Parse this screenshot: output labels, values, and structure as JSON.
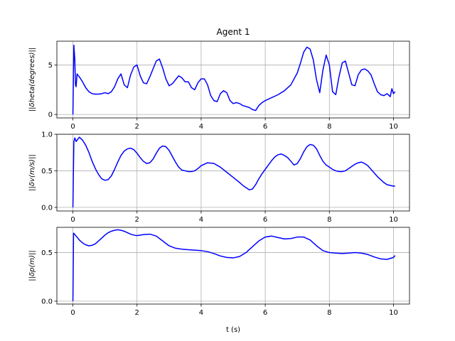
{
  "figure": {
    "title": "Agent 1",
    "xlabel": "t (s)"
  },
  "chart_data": [
    {
      "type": "line",
      "title": "Agent 1",
      "xlabel": "",
      "ylabel": "||δheta(degrees)||",
      "xlim": [
        -0.5,
        10.5
      ],
      "ylim": [
        -0.35,
        7.4
      ],
      "xticks": [
        0,
        2,
        4,
        6,
        8,
        10
      ],
      "yticks": [
        0,
        5
      ],
      "grid": true,
      "color": "#0000ff",
      "series": [
        {
          "x": [
            0,
            0.03,
            0.06,
            0.08,
            0.1,
            0.13,
            0.17,
            0.2,
            0.3,
            0.4,
            0.5,
            0.6,
            0.7,
            0.8,
            0.9,
            1.0,
            1.1,
            1.2,
            1.3,
            1.4,
            1.5,
            1.6,
            1.7,
            1.8,
            1.9,
            2.0,
            2.1,
            2.2,
            2.3,
            2.4,
            2.5,
            2.6,
            2.7,
            2.8,
            2.9,
            3.0,
            3.1,
            3.2,
            3.3,
            3.4,
            3.5,
            3.6,
            3.7,
            3.8,
            3.9,
            4.0,
            4.1,
            4.2,
            4.3,
            4.4,
            4.5,
            4.6,
            4.7,
            4.8,
            4.9,
            5.0,
            5.1,
            5.2,
            5.3,
            5.4,
            5.5,
            5.6,
            5.7,
            5.8,
            5.9,
            6.0,
            6.2,
            6.4,
            6.6,
            6.8,
            7.0,
            7.1,
            7.2,
            7.3,
            7.4,
            7.5,
            7.6,
            7.7,
            7.8,
            7.9,
            8.0,
            8.1,
            8.2,
            8.3,
            8.4,
            8.5,
            8.6,
            8.7,
            8.8,
            8.9,
            9.0,
            9.1,
            9.2,
            9.3,
            9.4,
            9.5,
            9.6,
            9.7,
            9.8,
            9.9,
            9.95,
            10.0,
            10.05
          ],
          "y": [
            0,
            7.0,
            5.5,
            3.0,
            2.8,
            4.1,
            3.9,
            3.8,
            3.3,
            2.7,
            2.3,
            2.1,
            2.05,
            2.05,
            2.1,
            2.2,
            2.1,
            2.3,
            2.8,
            3.6,
            4.1,
            3.0,
            2.7,
            4.0,
            4.8,
            5.0,
            3.9,
            3.2,
            3.1,
            3.8,
            4.6,
            5.4,
            5.6,
            4.7,
            3.6,
            2.9,
            3.1,
            3.5,
            3.9,
            3.7,
            3.3,
            3.3,
            2.7,
            2.5,
            3.2,
            3.6,
            3.6,
            3.0,
            1.9,
            1.4,
            1.3,
            2.1,
            2.4,
            2.2,
            1.4,
            1.1,
            1.2,
            1.1,
            0.9,
            0.8,
            0.7,
            0.5,
            0.4,
            0.9,
            1.2,
            1.4,
            1.7,
            2.0,
            2.4,
            3.0,
            4.2,
            5.2,
            6.3,
            6.8,
            6.6,
            5.5,
            3.5,
            2.2,
            4.5,
            6.0,
            5.0,
            2.3,
            2.0,
            3.8,
            5.2,
            5.4,
            4.2,
            3.0,
            2.9,
            4.0,
            4.5,
            4.6,
            4.4,
            4.0,
            3.1,
            2.3,
            2.0,
            1.9,
            2.1,
            1.8,
            2.6,
            2.1,
            2.3
          ]
        }
      ]
    },
    {
      "type": "line",
      "xlabel": "",
      "ylabel": "||δv(m/s)||",
      "xlim": [
        -0.5,
        10.5
      ],
      "ylim": [
        -0.05,
        1.0
      ],
      "xticks": [
        0,
        2,
        4,
        6,
        8,
        10
      ],
      "yticks": [
        0.0,
        0.5,
        1.0
      ],
      "ytick_labels": [
        "0.0",
        "0.5",
        "1.0"
      ],
      "grid": true,
      "color": "#0000ff",
      "series": [
        {
          "x": [
            0,
            0.03,
            0.06,
            0.1,
            0.15,
            0.2,
            0.3,
            0.4,
            0.5,
            0.6,
            0.7,
            0.8,
            0.9,
            1.0,
            1.1,
            1.2,
            1.3,
            1.4,
            1.5,
            1.6,
            1.7,
            1.8,
            1.9,
            2.0,
            2.1,
            2.2,
            2.3,
            2.4,
            2.5,
            2.6,
            2.7,
            2.8,
            2.9,
            3.0,
            3.1,
            3.2,
            3.3,
            3.4,
            3.5,
            3.6,
            3.7,
            3.8,
            3.9,
            4.0,
            4.2,
            4.4,
            4.6,
            4.8,
            5.0,
            5.2,
            5.3,
            5.4,
            5.5,
            5.6,
            5.7,
            5.8,
            5.9,
            6.0,
            6.1,
            6.2,
            6.3,
            6.4,
            6.5,
            6.6,
            6.7,
            6.8,
            6.9,
            7.0,
            7.1,
            7.2,
            7.3,
            7.4,
            7.5,
            7.6,
            7.7,
            7.8,
            7.9,
            8.0,
            8.1,
            8.2,
            8.3,
            8.4,
            8.5,
            8.6,
            8.7,
            8.8,
            8.9,
            9.0,
            9.1,
            9.2,
            9.3,
            9.4,
            9.5,
            9.6,
            9.7,
            9.8,
            9.9,
            10.0,
            10.05
          ],
          "y": [
            0,
            0.9,
            0.95,
            0.9,
            0.93,
            0.96,
            0.92,
            0.85,
            0.75,
            0.63,
            0.53,
            0.45,
            0.39,
            0.37,
            0.38,
            0.43,
            0.52,
            0.62,
            0.71,
            0.77,
            0.8,
            0.81,
            0.79,
            0.74,
            0.68,
            0.63,
            0.6,
            0.61,
            0.66,
            0.74,
            0.81,
            0.84,
            0.83,
            0.78,
            0.7,
            0.62,
            0.55,
            0.51,
            0.5,
            0.49,
            0.49,
            0.5,
            0.53,
            0.57,
            0.61,
            0.6,
            0.55,
            0.48,
            0.41,
            0.34,
            0.3,
            0.27,
            0.24,
            0.25,
            0.31,
            0.39,
            0.46,
            0.52,
            0.58,
            0.64,
            0.69,
            0.72,
            0.73,
            0.71,
            0.68,
            0.63,
            0.58,
            0.6,
            0.67,
            0.76,
            0.83,
            0.86,
            0.85,
            0.8,
            0.71,
            0.63,
            0.58,
            0.55,
            0.52,
            0.5,
            0.49,
            0.49,
            0.5,
            0.53,
            0.56,
            0.59,
            0.61,
            0.62,
            0.6,
            0.57,
            0.52,
            0.47,
            0.42,
            0.38,
            0.34,
            0.31,
            0.3,
            0.29,
            0.29
          ]
        }
      ]
    },
    {
      "type": "line",
      "xlabel": "t (s)",
      "ylabel": "||δp(m)||",
      "xlim": [
        -0.5,
        10.5
      ],
      "ylim": [
        -0.03,
        0.76
      ],
      "xticks": [
        0,
        2,
        4,
        6,
        8,
        10
      ],
      "yticks": [
        0.0,
        0.5
      ],
      "ytick_labels": [
        "0.0",
        "0.5"
      ],
      "grid": true,
      "color": "#0000ff",
      "series": [
        {
          "x": [
            0,
            0.02,
            0.05,
            0.1,
            0.2,
            0.3,
            0.4,
            0.5,
            0.6,
            0.7,
            0.8,
            0.9,
            1.0,
            1.1,
            1.2,
            1.3,
            1.4,
            1.5,
            1.6,
            1.7,
            1.8,
            1.9,
            2.0,
            2.2,
            2.4,
            2.6,
            2.8,
            3.0,
            3.2,
            3.4,
            3.6,
            3.8,
            4.0,
            4.2,
            4.4,
            4.6,
            4.8,
            5.0,
            5.2,
            5.4,
            5.6,
            5.8,
            6.0,
            6.2,
            6.4,
            6.6,
            6.8,
            7.0,
            7.2,
            7.4,
            7.6,
            7.8,
            8.0,
            8.2,
            8.4,
            8.6,
            8.8,
            9.0,
            9.2,
            9.4,
            9.6,
            9.8,
            10.0,
            10.05
          ],
          "y": [
            0,
            0.7,
            0.69,
            0.67,
            0.63,
            0.6,
            0.58,
            0.57,
            0.575,
            0.59,
            0.62,
            0.65,
            0.68,
            0.705,
            0.72,
            0.73,
            0.735,
            0.73,
            0.72,
            0.705,
            0.69,
            0.68,
            0.675,
            0.685,
            0.69,
            0.67,
            0.62,
            0.57,
            0.545,
            0.535,
            0.53,
            0.525,
            0.52,
            0.51,
            0.49,
            0.465,
            0.45,
            0.445,
            0.46,
            0.5,
            0.56,
            0.62,
            0.66,
            0.67,
            0.655,
            0.64,
            0.645,
            0.66,
            0.66,
            0.63,
            0.57,
            0.52,
            0.5,
            0.495,
            0.49,
            0.495,
            0.5,
            0.495,
            0.48,
            0.455,
            0.435,
            0.43,
            0.45,
            0.47
          ]
        }
      ]
    }
  ]
}
